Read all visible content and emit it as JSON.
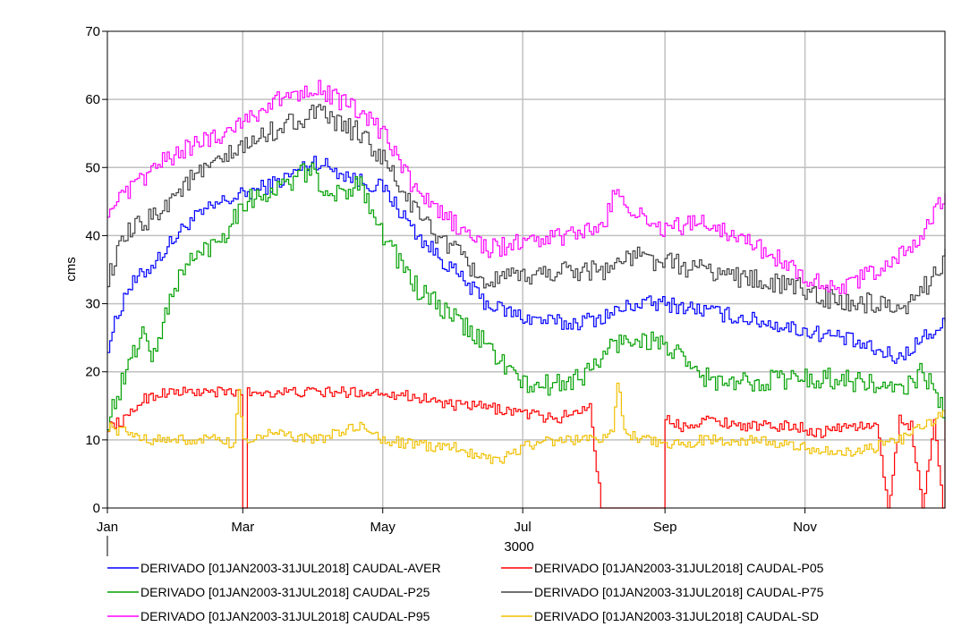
{
  "chart_data": {
    "type": "line",
    "xlabel": "3000",
    "ylabel": "cms",
    "ylim": [
      0,
      70
    ],
    "yticks": [
      0,
      10,
      20,
      30,
      40,
      50,
      60,
      70
    ],
    "xlim": [
      0,
      365
    ],
    "xticks": [
      {
        "label": "Jan",
        "day": 0
      },
      {
        "label": "Mar",
        "day": 59
      },
      {
        "label": "May",
        "day": 120
      },
      {
        "label": "Jul",
        "day": 181
      },
      {
        "label": "Sep",
        "day": 243
      },
      {
        "label": "Nov",
        "day": 304
      }
    ],
    "grid": true,
    "legend_position": "bottom",
    "series": [
      {
        "name": "DERIVADO [01JAN2003-31JUL2018] CAUDAL-AVER",
        "color": "#0000ff",
        "x": [
          0,
          8,
          20,
          35,
          50,
          59,
          75,
          90,
          110,
          120,
          135,
          150,
          165,
          181,
          200,
          215,
          230,
          243,
          260,
          275,
          290,
          304,
          320,
          335,
          345,
          355,
          365
        ],
        "y": [
          24,
          32,
          36,
          42,
          45,
          46,
          48,
          51,
          48,
          47,
          40,
          35,
          30,
          28,
          27,
          28,
          30,
          30,
          29,
          28,
          27,
          26,
          25,
          23,
          22,
          25,
          27
        ]
      },
      {
        "name": "DERIVADO [01JAN2003-31JUL2018] CAUDAL-P05",
        "color": "#ff0000",
        "x": [
          0,
          8,
          15,
          25,
          40,
          55,
          58,
          59,
          60,
          61,
          70,
          90,
          105,
          120,
          140,
          150,
          160,
          181,
          195,
          210,
          215,
          225,
          240,
          242,
          243,
          250,
          260,
          280,
          300,
          310,
          320,
          335,
          340,
          345,
          350,
          355,
          360,
          364,
          365
        ],
        "y": [
          12,
          13,
          16,
          17,
          17,
          17,
          17,
          0,
          0,
          17,
          17,
          17,
          17,
          17,
          16,
          15,
          15,
          14,
          13,
          15,
          0,
          0,
          0,
          0,
          13,
          12,
          13,
          12,
          12,
          11,
          12,
          12,
          0,
          13,
          12,
          0,
          13,
          0,
          12
        ]
      },
      {
        "name": "DERIVADO [01JAN2003-31JUL2018] CAUDAL-P25",
        "color": "#00a000",
        "x": [
          0,
          8,
          15,
          20,
          28,
          35,
          50,
          59,
          75,
          90,
          95,
          110,
          120,
          135,
          150,
          165,
          181,
          195,
          210,
          220,
          230,
          243,
          255,
          270,
          290,
          304,
          320,
          335,
          345,
          355,
          365
        ],
        "y": [
          13,
          20,
          26,
          22,
          32,
          36,
          40,
          45,
          47,
          50,
          45,
          48,
          40,
          32,
          28,
          24,
          18,
          18,
          20,
          24,
          25,
          24,
          20,
          18,
          19,
          19,
          19,
          18,
          17,
          20,
          14
        ]
      },
      {
        "name": "DERIVADO [01JAN2003-31JUL2018] CAUDAL-P75",
        "color": "#404040",
        "x": [
          0,
          8,
          20,
          35,
          50,
          59,
          75,
          90,
          110,
          120,
          135,
          150,
          165,
          181,
          200,
          215,
          230,
          243,
          260,
          275,
          290,
          304,
          320,
          335,
          345,
          355,
          365
        ],
        "y": [
          34,
          40,
          43,
          48,
          51,
          53,
          56,
          58,
          55,
          51,
          43,
          38,
          33,
          34,
          35,
          35,
          37,
          36,
          35,
          34,
          33,
          32,
          30,
          30,
          28,
          32,
          37
        ]
      },
      {
        "name": "DERIVADO [01JAN2003-31JUL2018] CAUDAL-P95",
        "color": "#ff00ff",
        "x": [
          0,
          8,
          20,
          35,
          50,
          59,
          75,
          90,
          95,
          110,
          120,
          135,
          150,
          165,
          181,
          200,
          215,
          222,
          230,
          243,
          260,
          275,
          290,
          304,
          320,
          335,
          345,
          355,
          365
        ],
        "y": [
          44,
          46,
          50,
          53,
          55,
          57,
          60,
          62,
          61,
          58,
          55,
          46,
          42,
          38,
          39,
          40,
          41,
          47,
          43,
          41,
          42,
          40,
          37,
          34,
          32,
          35,
          37,
          40,
          46
        ]
      },
      {
        "name": "DERIVADO [01JAN2003-31JUL2018] CAUDAL-SD",
        "color": "#f0c000",
        "x": [
          0,
          8,
          20,
          35,
          50,
          55,
          57,
          59,
          60,
          70,
          90,
          110,
          120,
          140,
          150,
          160,
          170,
          181,
          195,
          210,
          220,
          222,
          225,
          235,
          243,
          260,
          280,
          300,
          320,
          335,
          345,
          355,
          365
        ],
        "y": [
          12,
          11,
          10,
          10,
          10,
          9,
          17,
          10,
          10,
          11,
          10,
          12,
          10,
          9,
          9,
          8,
          7,
          9,
          10,
          10,
          11,
          19,
          11,
          10,
          9,
          10,
          10,
          9,
          8,
          9,
          10,
          12,
          14
        ]
      }
    ]
  }
}
